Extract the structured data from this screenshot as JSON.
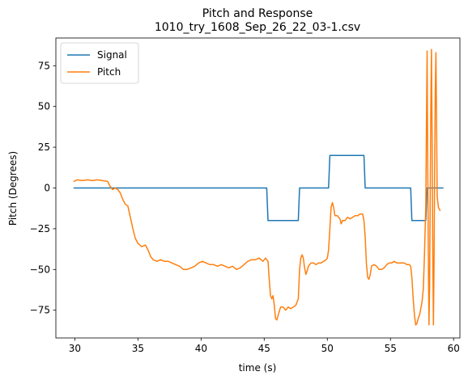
{
  "chart_data": {
    "type": "line",
    "title": "Pitch and Response",
    "subtitle": "1010_try_1608_Sep_26_22_03-1.csv",
    "xlabel": "time (s)",
    "ylabel": "Pitch (Degrees)",
    "xlim": [
      28.5,
      60.5
    ],
    "ylim": [
      -92,
      92
    ],
    "xticks": [
      30,
      35,
      40,
      45,
      50,
      55,
      60
    ],
    "yticks": [
      -75,
      -50,
      -25,
      0,
      25,
      50,
      75
    ],
    "grid": false,
    "legend_position": "top-left",
    "series": [
      {
        "name": "Signal",
        "color": "#1f77b4",
        "points": [
          [
            29.9,
            0
          ],
          [
            45.2,
            0
          ],
          [
            45.3,
            -20
          ],
          [
            47.7,
            -20
          ],
          [
            47.8,
            0
          ],
          [
            50.1,
            0
          ],
          [
            50.2,
            20
          ],
          [
            52.9,
            20
          ],
          [
            53.0,
            0
          ],
          [
            56.6,
            0
          ],
          [
            56.7,
            -20
          ],
          [
            57.8,
            -20
          ],
          [
            57.9,
            0
          ],
          [
            59.2,
            0
          ]
        ]
      },
      {
        "name": "Pitch",
        "color": "#ff7f0e",
        "points": [
          [
            29.9,
            4
          ],
          [
            30.2,
            5
          ],
          [
            30.6,
            4.5
          ],
          [
            31.0,
            5
          ],
          [
            31.4,
            4.5
          ],
          [
            31.8,
            5
          ],
          [
            32.2,
            4.5
          ],
          [
            32.6,
            4
          ],
          [
            32.8,
            1
          ],
          [
            33.0,
            -1
          ],
          [
            33.2,
            0
          ],
          [
            33.4,
            -1
          ],
          [
            33.6,
            -3
          ],
          [
            33.8,
            -7
          ],
          [
            34.0,
            -10
          ],
          [
            34.2,
            -11
          ],
          [
            34.4,
            -18
          ],
          [
            34.6,
            -25
          ],
          [
            34.8,
            -31
          ],
          [
            35.0,
            -34
          ],
          [
            35.3,
            -36
          ],
          [
            35.6,
            -35
          ],
          [
            35.8,
            -38
          ],
          [
            36.0,
            -42
          ],
          [
            36.2,
            -44
          ],
          [
            36.5,
            -45
          ],
          [
            36.8,
            -44
          ],
          [
            37.1,
            -45
          ],
          [
            37.4,
            -45
          ],
          [
            37.7,
            -46
          ],
          [
            38.0,
            -47
          ],
          [
            38.3,
            -48
          ],
          [
            38.6,
            -50
          ],
          [
            38.9,
            -50
          ],
          [
            39.2,
            -49
          ],
          [
            39.5,
            -48
          ],
          [
            39.8,
            -46
          ],
          [
            40.1,
            -45
          ],
          [
            40.4,
            -46
          ],
          [
            40.7,
            -47
          ],
          [
            41.0,
            -47
          ],
          [
            41.3,
            -48
          ],
          [
            41.6,
            -47
          ],
          [
            41.9,
            -48
          ],
          [
            42.2,
            -49
          ],
          [
            42.5,
            -48
          ],
          [
            42.8,
            -50
          ],
          [
            43.1,
            -49
          ],
          [
            43.4,
            -47
          ],
          [
            43.7,
            -45
          ],
          [
            44.0,
            -44
          ],
          [
            44.3,
            -44
          ],
          [
            44.6,
            -43
          ],
          [
            44.9,
            -45
          ],
          [
            45.1,
            -43
          ],
          [
            45.3,
            -45
          ],
          [
            45.4,
            -56
          ],
          [
            45.5,
            -66
          ],
          [
            45.6,
            -68
          ],
          [
            45.7,
            -66
          ],
          [
            45.8,
            -72
          ],
          [
            45.9,
            -80
          ],
          [
            46.0,
            -81
          ],
          [
            46.1,
            -78
          ],
          [
            46.3,
            -73
          ],
          [
            46.5,
            -73
          ],
          [
            46.7,
            -75
          ],
          [
            46.9,
            -73
          ],
          [
            47.1,
            -74
          ],
          [
            47.3,
            -73
          ],
          [
            47.5,
            -72
          ],
          [
            47.7,
            -68
          ],
          [
            47.8,
            -50
          ],
          [
            47.9,
            -43
          ],
          [
            48.0,
            -41
          ],
          [
            48.1,
            -43
          ],
          [
            48.2,
            -49
          ],
          [
            48.3,
            -53
          ],
          [
            48.4,
            -51
          ],
          [
            48.5,
            -48
          ],
          [
            48.7,
            -46
          ],
          [
            48.9,
            -46
          ],
          [
            49.1,
            -47
          ],
          [
            49.3,
            -46
          ],
          [
            49.5,
            -46
          ],
          [
            49.7,
            -45
          ],
          [
            49.9,
            -44
          ],
          [
            50.0,
            -43
          ],
          [
            50.1,
            -38
          ],
          [
            50.2,
            -25
          ],
          [
            50.3,
            -12
          ],
          [
            50.4,
            -9
          ],
          [
            50.5,
            -12
          ],
          [
            50.6,
            -17
          ],
          [
            50.8,
            -17
          ],
          [
            51.0,
            -19
          ],
          [
            51.1,
            -22
          ],
          [
            51.2,
            -20
          ],
          [
            51.4,
            -20
          ],
          [
            51.6,
            -18
          ],
          [
            51.8,
            -19
          ],
          [
            52.0,
            -18
          ],
          [
            52.2,
            -17
          ],
          [
            52.4,
            -17
          ],
          [
            52.6,
            -16
          ],
          [
            52.8,
            -16
          ],
          [
            52.9,
            -20
          ],
          [
            53.0,
            -30
          ],
          [
            53.1,
            -47
          ],
          [
            53.2,
            -55
          ],
          [
            53.3,
            -56
          ],
          [
            53.4,
            -53
          ],
          [
            53.5,
            -48
          ],
          [
            53.7,
            -47
          ],
          [
            53.9,
            -48
          ],
          [
            54.1,
            -50
          ],
          [
            54.3,
            -50
          ],
          [
            54.5,
            -49
          ],
          [
            54.7,
            -47
          ],
          [
            54.9,
            -46
          ],
          [
            55.1,
            -46
          ],
          [
            55.3,
            -45
          ],
          [
            55.5,
            -46
          ],
          [
            55.7,
            -46
          ],
          [
            55.9,
            -46
          ],
          [
            56.1,
            -46
          ],
          [
            56.3,
            -47
          ],
          [
            56.5,
            -47
          ],
          [
            56.6,
            -48
          ],
          [
            56.7,
            -55
          ],
          [
            56.8,
            -68
          ],
          [
            56.9,
            -78
          ],
          [
            57.0,
            -84
          ],
          [
            57.1,
            -83
          ],
          [
            57.2,
            -80
          ],
          [
            57.3,
            -78
          ],
          [
            57.4,
            -74
          ],
          [
            57.5,
            -70
          ],
          [
            57.6,
            -62
          ],
          [
            57.7,
            -40
          ],
          [
            57.8,
            -10
          ],
          [
            57.85,
            40
          ],
          [
            57.9,
            84
          ],
          [
            57.95,
            20
          ],
          [
            58.0,
            -40
          ],
          [
            58.05,
            -84
          ],
          [
            58.1,
            -60
          ],
          [
            58.15,
            0
          ],
          [
            58.2,
            50
          ],
          [
            58.25,
            85
          ],
          [
            58.3,
            30
          ],
          [
            58.35,
            -40
          ],
          [
            58.4,
            -84
          ],
          [
            58.45,
            -50
          ],
          [
            58.5,
            10
          ],
          [
            58.55,
            60
          ],
          [
            58.6,
            83
          ],
          [
            58.65,
            40
          ],
          [
            58.7,
            -5
          ],
          [
            58.8,
            -12
          ],
          [
            58.95,
            -14
          ]
        ]
      }
    ]
  }
}
